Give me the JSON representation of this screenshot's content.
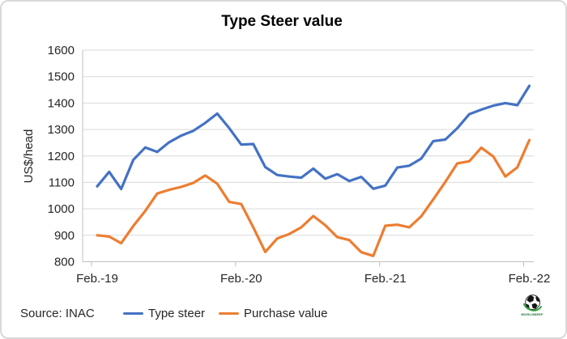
{
  "chart_data": {
    "type": "line",
    "title": "Type Steer value",
    "ylabel": "US$/head",
    "ylim": [
      800,
      1600
    ],
    "y_ticks": [
      1600,
      1500,
      1400,
      1300,
      1200,
      1100,
      1000,
      900,
      800
    ],
    "x_ticks": [
      {
        "index": 0,
        "label": "Feb.-19"
      },
      {
        "index": 12,
        "label": "Feb.-20"
      },
      {
        "index": 24,
        "label": "Feb.-21"
      },
      {
        "index": 36,
        "label": "Feb.-22"
      }
    ],
    "categories": [
      "Feb-19",
      "Mar-19",
      "Apr-19",
      "May-19",
      "Jun-19",
      "Jul-19",
      "Aug-19",
      "Sep-19",
      "Oct-19",
      "Nov-19",
      "Dec-19",
      "Jan-20",
      "Feb-20",
      "Mar-20",
      "Apr-20",
      "May-20",
      "Jun-20",
      "Jul-20",
      "Aug-20",
      "Sep-20",
      "Oct-20",
      "Nov-20",
      "Dec-20",
      "Jan-21",
      "Feb-21",
      "Mar-21",
      "Apr-21",
      "May-21",
      "Jun-21",
      "Jul-21",
      "Aug-21",
      "Sep-21",
      "Oct-21",
      "Nov-21",
      "Dec-21",
      "Jan-22",
      "Feb-22"
    ],
    "series": [
      {
        "name": "Type steer",
        "color": "#4472C4",
        "values": [
          1085,
          1140,
          1075,
          1185,
          1232,
          1215,
          1252,
          1277,
          1295,
          1325,
          1360,
          1305,
          1243,
          1245,
          1158,
          1128,
          1122,
          1118,
          1152,
          1114,
          1131,
          1105,
          1121,
          1076,
          1088,
          1156,
          1163,
          1190,
          1256,
          1262,
          1305,
          1358,
          1375,
          1390,
          1400,
          1392,
          1465
        ]
      },
      {
        "name": "Purchase value",
        "color": "#ED7D31",
        "values": [
          900,
          895,
          870,
          935,
          992,
          1058,
          1072,
          1083,
          1098,
          1126,
          1095,
          1026,
          1018,
          930,
          837,
          888,
          905,
          930,
          973,
          938,
          893,
          882,
          836,
          822,
          936,
          940,
          930,
          972,
          1036,
          1102,
          1172,
          1180,
          1231,
          1198,
          1122,
          1157,
          1260
        ]
      }
    ],
    "grid": true,
    "legend_position": "bottom"
  },
  "footer": {
    "source_label": "Source: INAC"
  },
  "logo": {
    "wordmark": "WORLDBEEF"
  },
  "colors": {
    "gridline": "#D9D9D9",
    "axis": "#BFBFBF",
    "text": "#262626",
    "background": "#FFFFFF",
    "border": "#D9D9D9"
  }
}
